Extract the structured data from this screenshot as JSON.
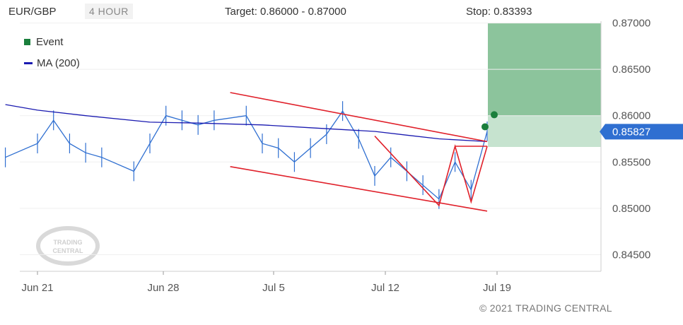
{
  "header": {
    "symbol": "EUR/GBP",
    "timeframe": "4 HOUR",
    "target": "Target: 0.86000 - 0.87000",
    "stop": "Stop: 0.83393"
  },
  "legend": {
    "event_label": "Event",
    "ma_label": "MA (200)"
  },
  "watermark": "TRADING CENTRAL",
  "copyright": "© 2021 TRADING CENTRAL",
  "colors": {
    "price": "#2f6fd1",
    "ma": "#1a1ab0",
    "event": "#1a7f3c",
    "target_zone": "#8cc49c",
    "stop_zone": "#c6e3cf",
    "pattern": "#e0202a",
    "channel": "#888888",
    "last_price_tag": "#2f6fd1"
  },
  "chart_data": {
    "type": "line",
    "title": "EUR/GBP",
    "xlabel": "",
    "ylabel": "",
    "x_ticks": [
      "Jun 21",
      "Jun 28",
      "Jul 5",
      "Jul 12",
      "Jul 19"
    ],
    "y_ticks": [
      "0.87000",
      "0.86500",
      "0.86000",
      "0.85500",
      "0.85000",
      "0.84500"
    ],
    "ylim": [
      0.8432,
      0.8702
    ],
    "last_price": "0.85827",
    "target_range": [
      0.86,
      0.87
    ],
    "stop": 0.83393,
    "events": [
      {
        "date": "Jul 19",
        "value": 0.8588
      },
      {
        "date": "Jul 19",
        "value": 0.8601
      }
    ],
    "series": [
      {
        "name": "MA (200)",
        "x": [
          "Jun 19",
          "Jun 21",
          "Jun 24",
          "Jun 28",
          "Jul 1",
          "Jul 5",
          "Jul 8",
          "Jul 12",
          "Jul 14",
          "Jul 16",
          "Jul 19"
        ],
        "values": [
          0.8612,
          0.8606,
          0.86,
          0.8593,
          0.8592,
          0.859,
          0.8587,
          0.8583,
          0.8579,
          0.8575,
          0.8572
        ]
      },
      {
        "name": "Price",
        "x": [
          "Jun 19",
          "Jun 21",
          "Jun 22",
          "Jun 23",
          "Jun 24",
          "Jun 25",
          "Jun 27",
          "Jun 28",
          "Jun 29",
          "Jun 30",
          "Jul 1",
          "Jul 2",
          "Jul 4",
          "Jul 5",
          "Jul 6",
          "Jul 7",
          "Jul 8",
          "Jul 9",
          "Jul 10",
          "Jul 11",
          "Jul 12",
          "Jul 13",
          "Jul 14",
          "Jul 15",
          "Jul 16",
          "Jul 17",
          "Jul 18",
          "Jul 19"
        ],
        "values": [
          0.8555,
          0.857,
          0.8595,
          0.857,
          0.856,
          0.8555,
          0.854,
          0.857,
          0.86,
          0.8595,
          0.859,
          0.8595,
          0.86,
          0.857,
          0.8565,
          0.855,
          0.8565,
          0.858,
          0.8605,
          0.8575,
          0.8535,
          0.8555,
          0.854,
          0.8525,
          0.851,
          0.855,
          0.852,
          0.8583
        ]
      }
    ],
    "patterns": [
      {
        "name": "descending-channel-upper",
        "points": [
          [
            "Jul 3",
            0.8625
          ],
          [
            "Jul 19",
            0.8572
          ]
        ]
      },
      {
        "name": "descending-channel-lower",
        "points": [
          [
            "Jul 3",
            0.8545
          ],
          [
            "Jul 19",
            0.8497
          ]
        ]
      },
      {
        "name": "double-bottom",
        "points": [
          [
            "Jul 12",
            0.8578
          ],
          [
            "Jul 16",
            0.8503
          ],
          [
            "Jul 17",
            0.8567
          ],
          [
            "Jul 18",
            0.8507
          ],
          [
            "Jul 19",
            0.8567
          ]
        ]
      },
      {
        "name": "neckline",
        "points": [
          [
            "Jul 17",
            0.8567
          ],
          [
            "Jul 19",
            0.8567
          ]
        ]
      }
    ]
  }
}
